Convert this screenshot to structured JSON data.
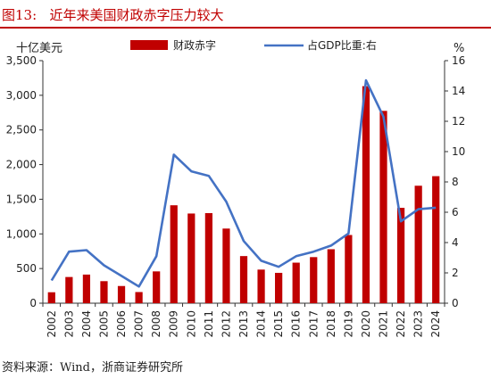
{
  "figure": {
    "number": "图13:",
    "title": "近年来美国财政赤字压力较大",
    "source": "资料来源：Wind，浙商证券研究所"
  },
  "colors": {
    "bar": "#c00000",
    "line": "#4472c4",
    "accent": "#c00000"
  },
  "chart_data": {
    "type": "bar",
    "categories": [
      "2002",
      "2003",
      "2004",
      "2005",
      "2006",
      "2007",
      "2008",
      "2009",
      "2010",
      "2011",
      "2012",
      "2013",
      "2014",
      "2015",
      "2016",
      "2017",
      "2018",
      "2019",
      "2020",
      "2021",
      "2022",
      "2023",
      "2024"
    ],
    "series": [
      {
        "name": "财政赤字",
        "type": "bar",
        "axis": "left",
        "values": [
          158,
          378,
          413,
          318,
          248,
          161,
          459,
          1413,
          1294,
          1300,
          1077,
          680,
          485,
          438,
          585,
          665,
          779,
          984,
          3132,
          2775,
          1376,
          1695,
          1833
        ]
      },
      {
        "name": "占GDP比重:右",
        "type": "line",
        "axis": "right",
        "values": [
          1.5,
          3.4,
          3.5,
          2.5,
          1.8,
          1.1,
          3.1,
          9.8,
          8.7,
          8.4,
          6.7,
          4.1,
          2.8,
          2.4,
          3.1,
          3.4,
          3.8,
          4.6,
          14.7,
          12.3,
          5.4,
          6.2,
          6.3
        ]
      }
    ],
    "y_left": {
      "label": "十亿美元",
      "min": 0,
      "max": 3500,
      "ticks": [
        "0",
        "500",
        "1,000",
        "1,500",
        "2,000",
        "2,500",
        "3,000",
        "3,500"
      ]
    },
    "y_right": {
      "label": "%",
      "min": 0,
      "max": 16,
      "ticks": [
        "0",
        "2",
        "4",
        "6",
        "8",
        "10",
        "12",
        "14",
        "16"
      ]
    },
    "legend": {
      "position": "top",
      "entries": [
        "财政赤字",
        "占GDP比重:右"
      ]
    },
    "grid": false
  }
}
